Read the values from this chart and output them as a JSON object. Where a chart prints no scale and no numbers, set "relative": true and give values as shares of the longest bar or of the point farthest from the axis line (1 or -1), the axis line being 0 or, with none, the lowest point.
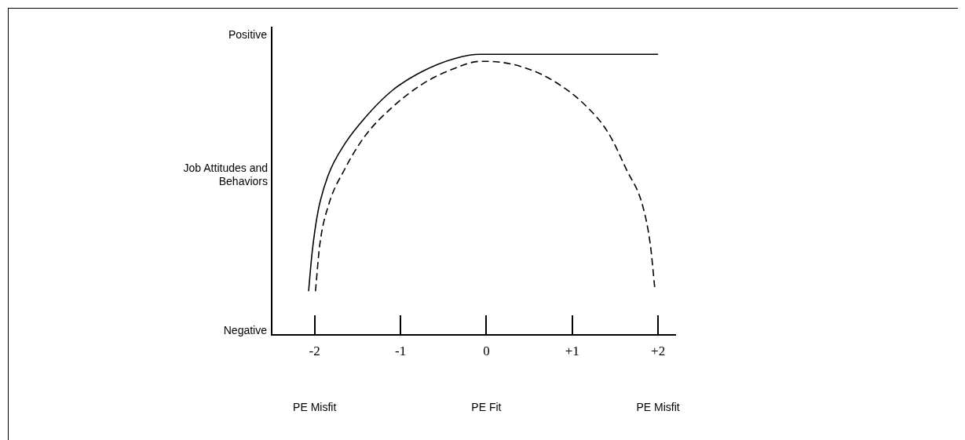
{
  "chart_data": {
    "type": "line",
    "relative": true,
    "ylabel": "Job Attitudes and Behaviors",
    "xlim": [
      -2.5,
      2.2
    ],
    "xticks": [
      {
        "value": -2,
        "label": "-2"
      },
      {
        "value": -1,
        "label": "-1"
      },
      0,
      {
        "value": 1,
        "label": "+1"
      },
      {
        "value": 2,
        "label": "+2"
      }
    ],
    "grid": false,
    "legend": false,
    "marker": "none",
    "series": [
      {
        "color": "#000000",
        "line_style": "solid",
        "x": [
          -2.07,
          -2.03,
          -1.96,
          -1.84,
          -1.65,
          -1.41,
          -1.1,
          -0.74,
          -0.37,
          -0.07,
          0,
          2
        ],
        "values": [
          0.155,
          0.29,
          0.44,
          0.57,
          0.68,
          0.775,
          0.87,
          0.94,
          0.985,
          1,
          1,
          1
        ]
      },
      {
        "color": "#000000",
        "line_style": "dashed",
        "x": [
          -1.99,
          -1.94,
          -1.84,
          -1.65,
          -1.41,
          -1.1,
          -0.74,
          -0.37,
          -0.07,
          0,
          0.42,
          0.81,
          1.18,
          1.42,
          1.63,
          1.82,
          1.91,
          1.96
        ],
        "values": [
          0.155,
          0.32,
          0.46,
          0.59,
          0.71,
          0.81,
          0.895,
          0.95,
          0.975,
          0.975,
          0.955,
          0.9,
          0.81,
          0.72,
          0.59,
          0.46,
          0.32,
          0.17
        ]
      }
    ],
    "annotations": [
      "Positive",
      "Negative",
      "PE Misfit",
      "PE Fit",
      "PE Misfit"
    ]
  }
}
